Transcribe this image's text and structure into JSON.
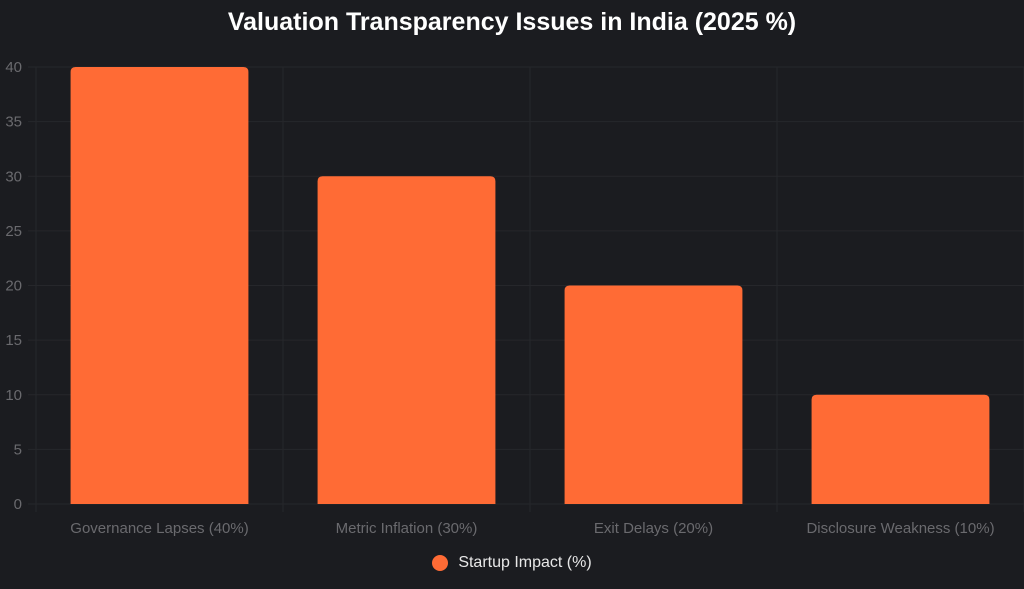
{
  "chart_data": {
    "type": "bar",
    "title": "Valuation Transparency Issues in India (2025 %)",
    "xlabel": "",
    "ylabel": "",
    "categories": [
      "Governance Lapses (40%)",
      "Metric Inflation (30%)",
      "Exit Delays (20%)",
      "Disclosure Weakness (10%)"
    ],
    "series": [
      {
        "name": "Startup Impact (%)",
        "values": [
          40,
          30,
          20,
          10
        ],
        "color": "#ff6b35"
      }
    ],
    "ylim": [
      0,
      40
    ],
    "yticks": [
      0,
      5,
      10,
      15,
      20,
      25,
      30,
      35,
      40
    ],
    "grid": true,
    "legend": "bottom-center"
  },
  "colors": {
    "background": "#1b1c20",
    "bar": "#ff6b35",
    "grid": "#26272b",
    "tick_text": "#6a6a6e",
    "title_text": "#ffffff",
    "legend_text": "#e8e8e8"
  }
}
